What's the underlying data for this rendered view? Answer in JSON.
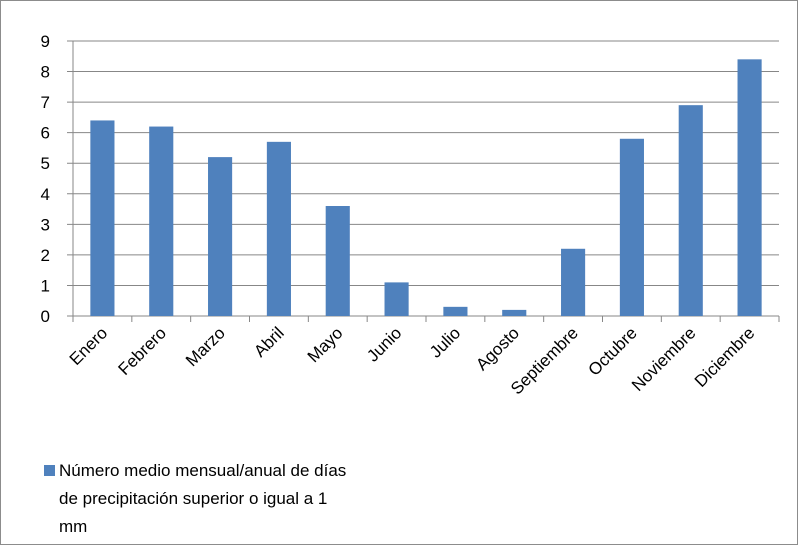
{
  "chart_data": {
    "type": "bar",
    "categories": [
      "Enero",
      "Febrero",
      "Marzo",
      "Abril",
      "Mayo",
      "Junio",
      "Julio",
      "Agosto",
      "Septiembre",
      "Octubre",
      "Noviembre",
      "Diciembre"
    ],
    "series": [
      {
        "name": "Número medio mensual/anual de días de precipitación superior o igual a 1 mm",
        "values": [
          6.4,
          6.2,
          5.2,
          5.7,
          3.6,
          1.1,
          0.3,
          0.2,
          2.2,
          5.8,
          6.9,
          8.4
        ]
      }
    ],
    "ylim": [
      0,
      9
    ],
    "yticks": [
      0,
      1,
      2,
      3,
      4,
      5,
      6,
      7,
      8,
      9
    ],
    "grid": true,
    "legend_position": "bottom-left",
    "colors": {
      "bar": "#4F81BD",
      "grid": "#878787",
      "axis": "#878787"
    },
    "legend_lines": [
      "Número medio mensual/anual de días",
      "de precipitación superior o igual a 1",
      "mm"
    ]
  }
}
